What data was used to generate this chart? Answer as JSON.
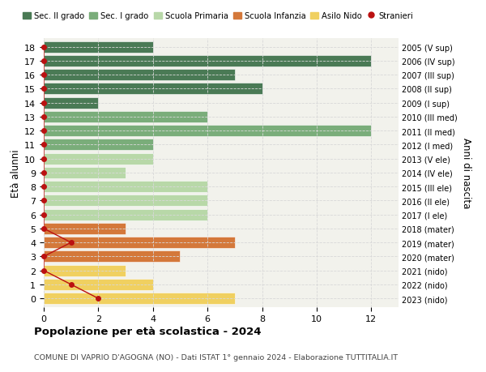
{
  "ages": [
    18,
    17,
    16,
    15,
    14,
    13,
    12,
    11,
    10,
    9,
    8,
    7,
    6,
    5,
    4,
    3,
    2,
    1,
    0
  ],
  "right_labels": [
    "2005 (V sup)",
    "2006 (IV sup)",
    "2007 (III sup)",
    "2008 (II sup)",
    "2009 (I sup)",
    "2010 (III med)",
    "2011 (II med)",
    "2012 (I med)",
    "2013 (V ele)",
    "2014 (IV ele)",
    "2015 (III ele)",
    "2016 (II ele)",
    "2017 (I ele)",
    "2018 (mater)",
    "2019 (mater)",
    "2020 (mater)",
    "2021 (nido)",
    "2022 (nido)",
    "2023 (nido)"
  ],
  "bar_values": [
    4,
    12,
    7,
    8,
    2,
    6,
    12,
    4,
    4,
    3,
    6,
    6,
    6,
    3,
    7,
    5,
    3,
    4,
    7
  ],
  "bar_colors": [
    "#4a7a55",
    "#4a7a55",
    "#4a7a55",
    "#4a7a55",
    "#4a7a55",
    "#7aad7a",
    "#7aad7a",
    "#7aad7a",
    "#b8d8a8",
    "#b8d8a8",
    "#b8d8a8",
    "#b8d8a8",
    "#b8d8a8",
    "#d4783a",
    "#d4783a",
    "#d4783a",
    "#f0d060",
    "#f0d060",
    "#f0d060"
  ],
  "stranieri_x": [
    0,
    0,
    0,
    0,
    0,
    0,
    0,
    0,
    0,
    0,
    0,
    0,
    0,
    0,
    1,
    0,
    0,
    1,
    2
  ],
  "stranieri_ages": [
    18,
    17,
    16,
    15,
    14,
    13,
    12,
    11,
    10,
    9,
    8,
    7,
    6,
    5,
    4,
    3,
    2,
    1,
    0
  ],
  "legend_labels": [
    "Sec. II grado",
    "Sec. I grado",
    "Scuola Primaria",
    "Scuola Infanzia",
    "Asilo Nido",
    "Stranieri"
  ],
  "legend_colors": [
    "#4a7a55",
    "#7aad7a",
    "#b8d8a8",
    "#d4783a",
    "#f0d060",
    "#bb1111"
  ],
  "title": "Popolazione per età scolastica - 2024",
  "subtitle": "COMUNE DI VAPRIO D'AGOGNA (NO) - Dati ISTAT 1° gennaio 2024 - Elaborazione TUTTITALIA.IT",
  "ylabel_left": "Età alunni",
  "ylabel_right": "Anni di nascita",
  "xlim": [
    0,
    13
  ],
  "xticks": [
    0,
    2,
    4,
    6,
    8,
    10,
    12
  ],
  "plot_bg": "#f2f2ec",
  "fig_bg": "#ffffff",
  "grid_color": "#d8d8d8",
  "bar_height": 0.82
}
